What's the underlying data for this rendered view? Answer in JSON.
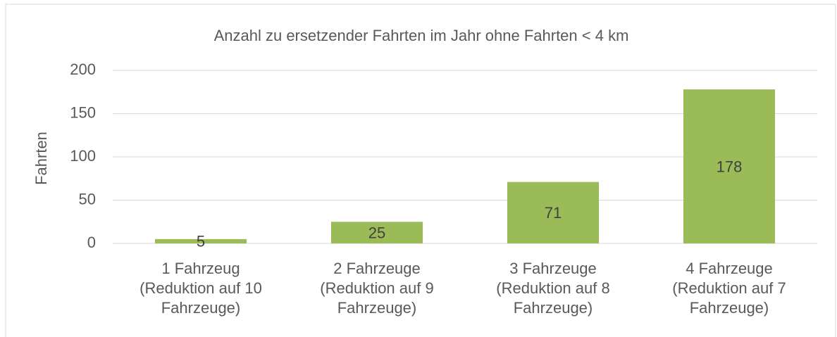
{
  "chart_data": {
    "type": "bar",
    "title": "Anzahl zu ersetzender Fahrten im Jahr ohne Fahrten < 4 km",
    "y_label": "Fahrten",
    "categories": [
      "1 Fahrzeug\n(Reduktion auf 10\nFahrzeuge)",
      "2 Fahrzeuge\n(Reduktion auf 9\nFahrzeuge)",
      "3 Fahrzeuge\n(Reduktion auf 8\nFahrzeuge)",
      "4 Fahrzeuge\n(Reduktion auf 7\nFahrzeuge)"
    ],
    "values": [
      5,
      25,
      71,
      178
    ],
    "color": "#9bbb59",
    "ylim": [
      0,
      200
    ],
    "yticks": [
      0,
      50,
      100,
      150,
      200
    ],
    "grid": true
  }
}
